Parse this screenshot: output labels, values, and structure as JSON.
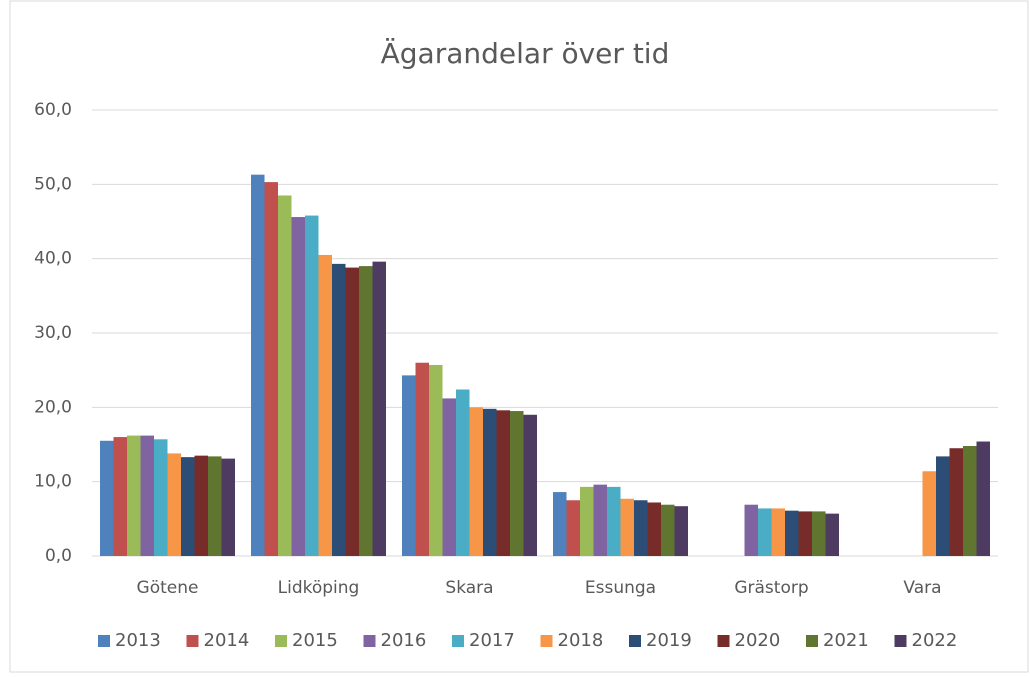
{
  "chart_data": {
    "type": "bar",
    "title": "Ägarandelar över tid",
    "categories": [
      "Götene",
      "Lidköping",
      "Skara",
      "Essunga",
      "Grästorp",
      "Vara"
    ],
    "series": [
      {
        "name": "2013",
        "color": "#4f81bd",
        "values": [
          15.5,
          51.3,
          24.3,
          8.6,
          null,
          null
        ]
      },
      {
        "name": "2014",
        "color": "#c0504d",
        "values": [
          16.0,
          50.3,
          26.0,
          7.5,
          null,
          null
        ]
      },
      {
        "name": "2015",
        "color": "#9bbb59",
        "values": [
          16.2,
          48.5,
          25.7,
          9.3,
          null,
          null
        ]
      },
      {
        "name": "2016",
        "color": "#8064a2",
        "values": [
          16.2,
          45.6,
          21.2,
          9.6,
          6.9,
          null
        ]
      },
      {
        "name": "2017",
        "color": "#4bacc6",
        "values": [
          15.7,
          45.8,
          22.4,
          9.3,
          6.4,
          null
        ]
      },
      {
        "name": "2018",
        "color": "#f79646",
        "values": [
          13.8,
          40.5,
          20.0,
          7.7,
          6.4,
          11.4
        ]
      },
      {
        "name": "2019",
        "color": "#2c4d75",
        "values": [
          13.3,
          39.3,
          19.8,
          7.5,
          6.1,
          13.4
        ]
      },
      {
        "name": "2020",
        "color": "#772c2a",
        "values": [
          13.5,
          38.8,
          19.6,
          7.2,
          6.0,
          14.5
        ]
      },
      {
        "name": "2021",
        "color": "#5f7530",
        "values": [
          13.4,
          39.0,
          19.5,
          6.9,
          6.0,
          14.8
        ]
      },
      {
        "name": "2022",
        "color": "#4d3b62",
        "values": [
          13.1,
          39.6,
          19.0,
          6.7,
          5.7,
          15.4
        ]
      }
    ],
    "ylim": [
      0,
      60
    ],
    "yticks": [
      {
        "value": 0,
        "label": "0,0"
      },
      {
        "value": 10,
        "label": "10,0"
      },
      {
        "value": 20,
        "label": "20,0"
      },
      {
        "value": 30,
        "label": "30,0"
      },
      {
        "value": 40,
        "label": "40,0"
      },
      {
        "value": 50,
        "label": "50,0"
      },
      {
        "value": 60,
        "label": "60,0"
      }
    ],
    "grid": true,
    "legend": "bottom"
  }
}
